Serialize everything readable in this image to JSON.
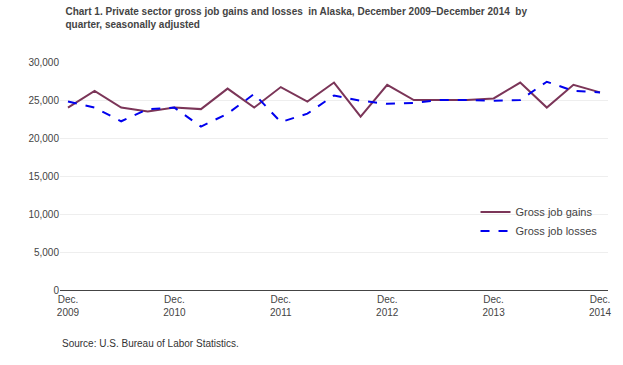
{
  "chart_data": {
    "type": "line",
    "title": "Chart 1. Private sector gross job gains and losses  in Alaska, December 2009–December 2014  by\nquarter, seasonally adjusted",
    "annotations": [
      "Source: U.S. Bureau of Labor Statistics."
    ],
    "categories": [
      "Dec.\n2009",
      null,
      null,
      null,
      "Dec.\n2010",
      null,
      null,
      null,
      "Dec.\n2011",
      null,
      null,
      null,
      "Dec.\n2012",
      null,
      null,
      null,
      "Dec.\n2013",
      null,
      null,
      null,
      "Dec.\n2014"
    ],
    "series": [
      {
        "name": "Gross job gains",
        "color": "#7B3558",
        "line_style": "solid",
        "values": [
          24000,
          26200,
          24000,
          23500,
          24000,
          23800,
          26500,
          24000,
          26700,
          24800,
          27300,
          22800,
          27000,
          25000,
          25000,
          25000,
          25200,
          27300,
          24000,
          27000,
          26000
        ]
      },
      {
        "name": "Gross job losses",
        "color": "#0000EE",
        "line_style": "dashed",
        "values": [
          24800,
          24000,
          22200,
          23800,
          24000,
          21500,
          23200,
          25800,
          22100,
          23200,
          25600,
          24900,
          24500,
          24600,
          25000,
          25000,
          24900,
          25000,
          27400,
          26200,
          26000
        ]
      }
    ],
    "ylim": [
      0,
      30000
    ],
    "yticks": [
      0,
      {
        "value": 5000,
        "label": "5,000"
      },
      {
        "value": 10000,
        "label": "10,000"
      },
      {
        "value": 15000,
        "label": "15,000"
      },
      {
        "value": 20000,
        "label": "20,000"
      },
      {
        "value": 25000,
        "label": "25,000"
      },
      {
        "value": 30000,
        "label": "30,000"
      }
    ],
    "grid": true,
    "legend": "lower right"
  }
}
